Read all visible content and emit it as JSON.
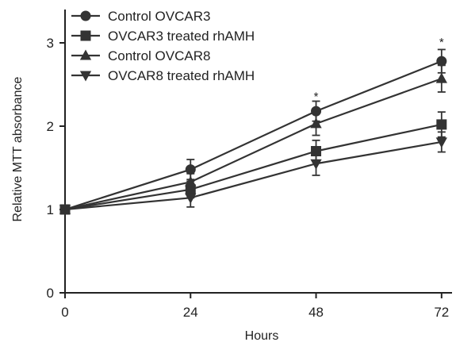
{
  "chart_data": {
    "type": "line",
    "title": "",
    "xlabel": "Hours",
    "ylabel": "Relative MTT absorbance",
    "x": [
      0,
      24,
      48,
      72
    ],
    "xticks": [
      "0",
      "24",
      "48",
      "72"
    ],
    "yticks": [
      "0",
      "1",
      "2",
      "3"
    ],
    "xlim": [
      0,
      74
    ],
    "ylim": [
      0,
      3.4
    ],
    "grid": false,
    "legend_position": "top-left",
    "series": [
      {
        "name": "Control OVCAR3",
        "marker": "circle",
        "color": "#333333",
        "values": [
          1.0,
          1.48,
          2.18,
          2.78
        ],
        "errors": [
          0.0,
          0.12,
          0.12,
          0.14
        ]
      },
      {
        "name": "OVCAR3 treated rhAMH",
        "marker": "square",
        "color": "#333333",
        "values": [
          1.0,
          1.24,
          1.7,
          2.02
        ],
        "errors": [
          0.0,
          0.1,
          0.13,
          0.15
        ]
      },
      {
        "name": "Control OVCAR8",
        "marker": "triangle-up",
        "color": "#333333",
        "values": [
          1.0,
          1.33,
          2.03,
          2.57
        ],
        "errors": [
          0.0,
          0.1,
          0.14,
          0.16
        ]
      },
      {
        "name": "OVCAR8 treated rhAMH",
        "marker": "triangle-down",
        "color": "#333333",
        "values": [
          1.0,
          1.14,
          1.55,
          1.81
        ],
        "errors": [
          0.0,
          0.11,
          0.14,
          0.12
        ]
      }
    ],
    "annotations": [
      {
        "x": 48,
        "y": 2.35,
        "text": "*"
      },
      {
        "x": 72,
        "y": 3.0,
        "text": "*"
      }
    ]
  }
}
